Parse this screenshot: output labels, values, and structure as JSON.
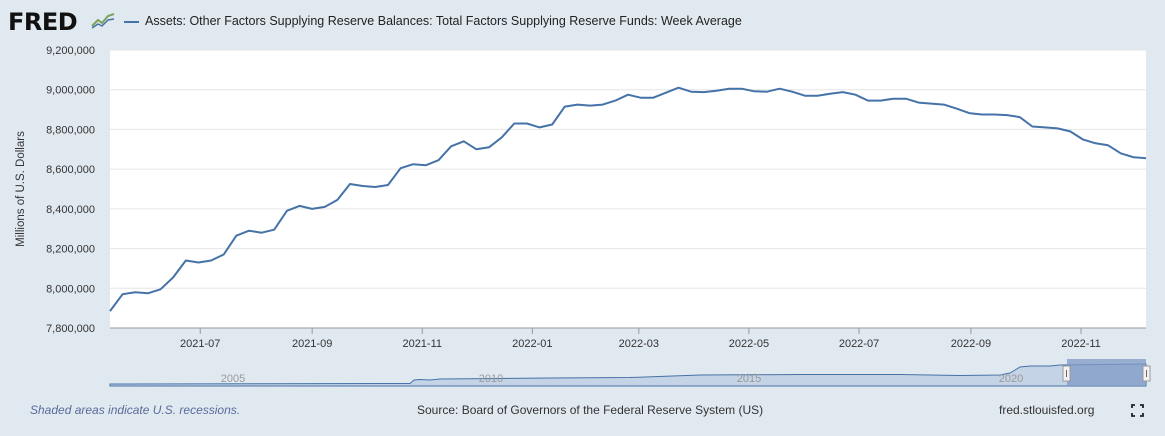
{
  "header": {
    "logo_text": "FRED",
    "legend_label": "Assets: Other Factors Supplying Reserve Balances: Total Factors Supplying Reserve Funds: Week Average",
    "series_color": "#4572a7"
  },
  "footer": {
    "recession_note": "Shaded areas indicate U.S. recessions.",
    "source": "Source: Board of Governors of the Federal Reserve System (US)",
    "site": "fred.stlouisfed.org",
    "fullscreen_icon": "fullscreen-icon"
  },
  "chart_data": {
    "type": "line",
    "title": "",
    "xlabel": "",
    "ylabel": "Millions of U.S. Dollars",
    "ylim": [
      7800000,
      9200000
    ],
    "yticks": [
      7800000,
      8000000,
      8200000,
      8400000,
      8600000,
      8800000,
      9000000,
      9200000
    ],
    "ytick_labels": [
      "7,800,000",
      "8,000,000",
      "8,200,000",
      "8,400,000",
      "8,600,000",
      "8,800,000",
      "9,000,000",
      "9,200,000"
    ],
    "xlim": [
      "2021-05-12",
      "2022-12-07"
    ],
    "xticks": [
      "2021-07-01",
      "2021-09-01",
      "2021-11-01",
      "2022-01-01",
      "2022-03-01",
      "2022-05-01",
      "2022-07-01",
      "2022-09-01",
      "2022-11-01"
    ],
    "xtick_labels": [
      "2021-07",
      "2021-09",
      "2021-11",
      "2022-01",
      "2022-03",
      "2022-05",
      "2022-07",
      "2022-09",
      "2022-11"
    ],
    "grid": true,
    "series": [
      {
        "name": "Assets: Other Factors Supplying Reserve Balances: Total Factors Supplying Reserve Funds: Week Average",
        "color": "#4572a7",
        "x": [
          "2021-05-12",
          "2021-05-19",
          "2021-05-26",
          "2021-06-02",
          "2021-06-09",
          "2021-06-16",
          "2021-06-23",
          "2021-06-30",
          "2021-07-07",
          "2021-07-14",
          "2021-07-21",
          "2021-07-28",
          "2021-08-04",
          "2021-08-11",
          "2021-08-18",
          "2021-08-25",
          "2021-09-01",
          "2021-09-08",
          "2021-09-15",
          "2021-09-22",
          "2021-09-29",
          "2021-10-06",
          "2021-10-13",
          "2021-10-20",
          "2021-10-27",
          "2021-11-03",
          "2021-11-10",
          "2021-11-17",
          "2021-11-24",
          "2021-12-01",
          "2021-12-08",
          "2021-12-15",
          "2021-12-22",
          "2021-12-29",
          "2022-01-05",
          "2022-01-12",
          "2022-01-19",
          "2022-01-26",
          "2022-02-02",
          "2022-02-09",
          "2022-02-16",
          "2022-02-23",
          "2022-03-02",
          "2022-03-09",
          "2022-03-16",
          "2022-03-23",
          "2022-03-30",
          "2022-04-06",
          "2022-04-13",
          "2022-04-20",
          "2022-04-27",
          "2022-05-04",
          "2022-05-11",
          "2022-05-18",
          "2022-05-25",
          "2022-06-01",
          "2022-06-08",
          "2022-06-15",
          "2022-06-22",
          "2022-06-29",
          "2022-07-06",
          "2022-07-13",
          "2022-07-20",
          "2022-07-27",
          "2022-08-03",
          "2022-08-10",
          "2022-08-17",
          "2022-08-24",
          "2022-08-31",
          "2022-09-07",
          "2022-09-14",
          "2022-09-21",
          "2022-09-28",
          "2022-10-05",
          "2022-10-12",
          "2022-10-19",
          "2022-10-26",
          "2022-11-02",
          "2022-11-09",
          "2022-11-16",
          "2022-11-23",
          "2022-11-30",
          "2022-12-07"
        ],
        "values": [
          7885000,
          7970000,
          7980000,
          7975000,
          7995000,
          8055000,
          8140000,
          8130000,
          8140000,
          8170000,
          8265000,
          8290000,
          8280000,
          8295000,
          8390000,
          8415000,
          8400000,
          8410000,
          8445000,
          8525000,
          8515000,
          8510000,
          8520000,
          8605000,
          8625000,
          8620000,
          8645000,
          8715000,
          8740000,
          8700000,
          8710000,
          8760000,
          8830000,
          8830000,
          8810000,
          8825000,
          8915000,
          8925000,
          8920000,
          8925000,
          8945000,
          8975000,
          8960000,
          8960000,
          8985000,
          9010000,
          8990000,
          8988000,
          8995000,
          9005000,
          9005000,
          8992000,
          8990000,
          9005000,
          8990000,
          8970000,
          8970000,
          8980000,
          8988000,
          8975000,
          8945000,
          8945000,
          8955000,
          8955000,
          8935000,
          8930000,
          8925000,
          8905000,
          8882000,
          8875000,
          8875000,
          8872000,
          8862000,
          8815000,
          8810000,
          8805000,
          8790000,
          8750000,
          8730000,
          8720000,
          8680000,
          8660000,
          8655000
        ]
      }
    ]
  },
  "navigator": {
    "tick_labels": [
      "2005",
      "2010",
      "2015",
      "2020"
    ]
  }
}
